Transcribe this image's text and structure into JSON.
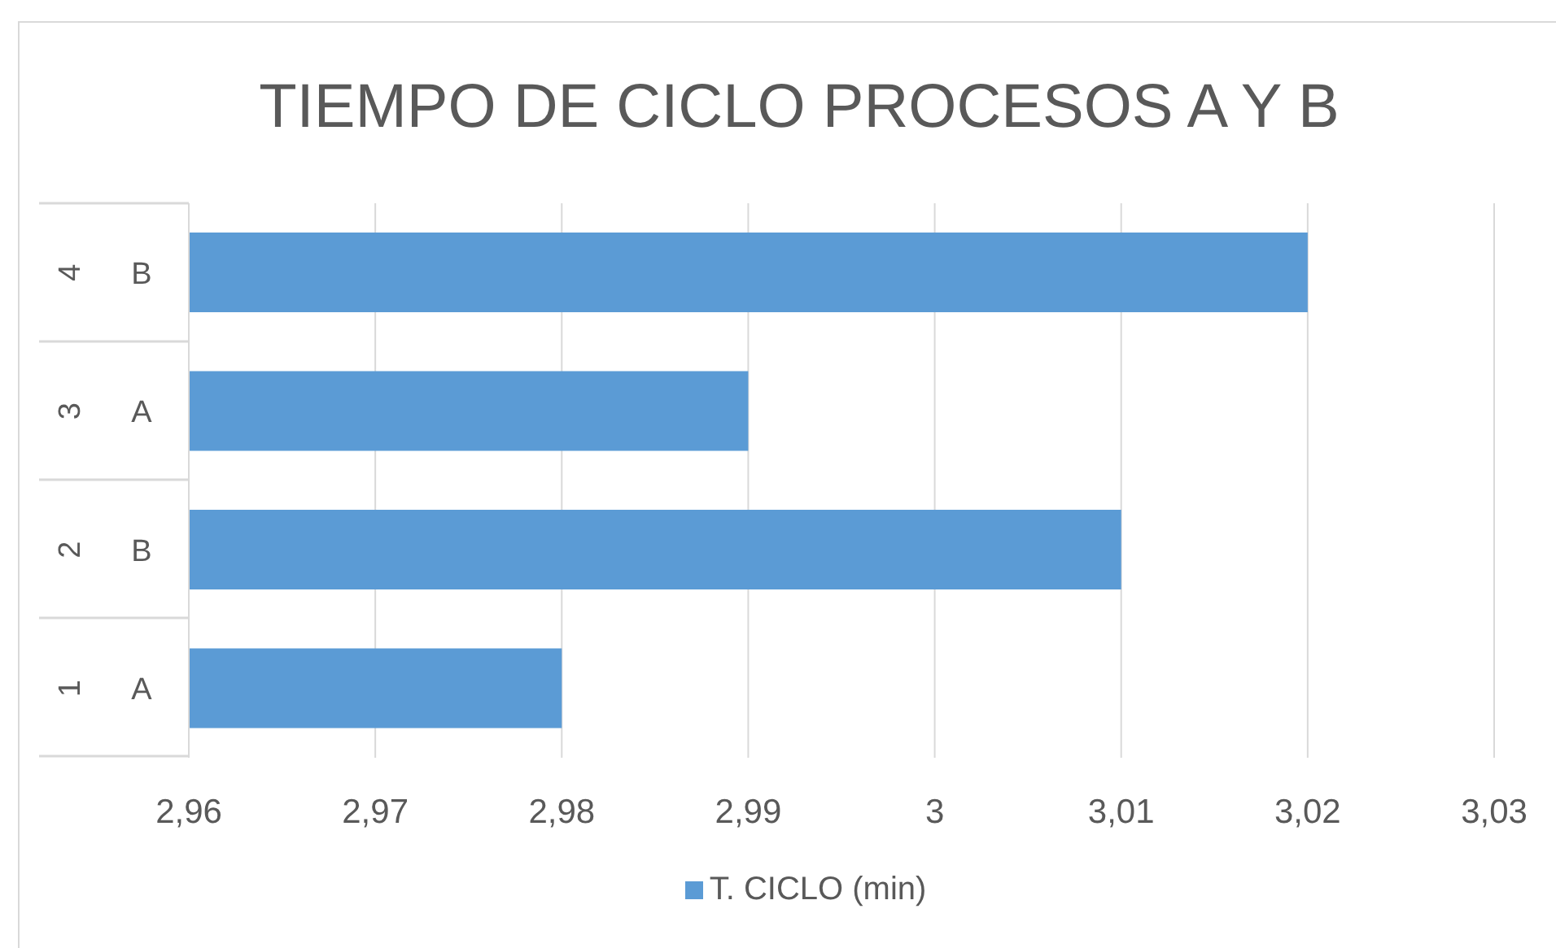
{
  "chart_data": {
    "type": "bar",
    "orientation": "horizontal",
    "title": "TIEMPO DE CICLO PROCESOS A Y B",
    "categories": [
      "4 B",
      "3 A",
      "2 B",
      "1 A"
    ],
    "series": [
      {
        "name": "T. CICLO (min)",
        "color": "#5b9bd5",
        "values": [
          3.02,
          2.99,
          3.01,
          2.98
        ]
      }
    ],
    "xlim": [
      2.96,
      3.03
    ],
    "xticks": [
      {
        "value": 2.96,
        "label": "2,96"
      },
      {
        "value": 2.97,
        "label": "2,97"
      },
      {
        "value": 2.98,
        "label": "2,98"
      },
      {
        "value": 2.99,
        "label": "2,99"
      },
      3,
      {
        "value": 3.01,
        "label": "3,01"
      },
      {
        "value": 3.02,
        "label": "3,02"
      },
      {
        "value": 3.03,
        "label": "3,03"
      }
    ],
    "grid": "x",
    "legend": "bottom"
  }
}
